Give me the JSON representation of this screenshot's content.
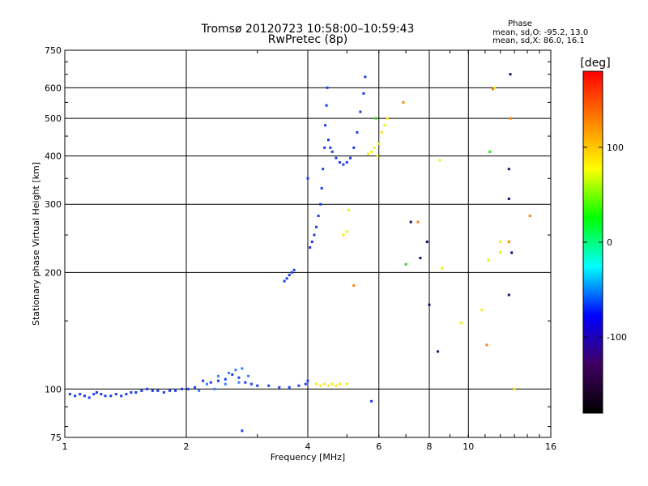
{
  "chart_data": {
    "type": "scatter",
    "title": "Tromsø 20120723 10:58:00–10:59:43",
    "subtitle": "RwPretec (8p)",
    "xlabel": "Frequency [MHz]",
    "ylabel": "Stationary phase Virtual Height [km]",
    "x_scale": "log",
    "y_scale": "log",
    "xlim": [
      1,
      16
    ],
    "ylim": [
      75,
      750
    ],
    "x_ticks": [
      1,
      2,
      4,
      6,
      8,
      10,
      16
    ],
    "y_ticks": [
      75,
      100,
      200,
      300,
      400,
      500,
      600,
      750
    ],
    "grid": true,
    "phase_header": "Phase",
    "phase_stats": [
      "mean, sd,O: -95.2, 13.0",
      "mean, sd,X:  86.0, 16.1"
    ],
    "colorbar": {
      "label": "[deg]",
      "range": [
        -180,
        180
      ],
      "ticks": [
        100,
        0,
        -100
      ],
      "colors": [
        "#ff0000",
        "#ff8000",
        "#ffff00",
        "#00ff00",
        "#00ffff",
        "#0000ff",
        "#400060",
        "#000000"
      ]
    },
    "series": [
      {
        "color": "#1a3cf0",
        "points": [
          [
            1.03,
            97
          ],
          [
            1.06,
            96
          ],
          [
            1.09,
            97
          ],
          [
            1.12,
            96
          ],
          [
            1.15,
            95
          ],
          [
            1.18,
            97
          ],
          [
            1.2,
            98
          ],
          [
            1.23,
            97
          ],
          [
            1.26,
            96
          ],
          [
            1.3,
            96
          ],
          [
            1.34,
            97
          ],
          [
            1.38,
            96
          ],
          [
            1.42,
            97
          ],
          [
            1.46,
            98
          ],
          [
            1.5,
            98
          ],
          [
            1.55,
            99
          ],
          [
            1.6,
            100
          ],
          [
            1.65,
            99
          ],
          [
            1.7,
            99
          ],
          [
            1.76,
            98
          ],
          [
            1.82,
            99
          ],
          [
            1.88,
            99
          ],
          [
            1.95,
            100
          ],
          [
            2.02,
            100
          ],
          [
            2.1,
            101
          ],
          [
            2.2,
            105
          ],
          [
            2.3,
            104
          ],
          [
            2.4,
            105
          ],
          [
            2.5,
            106
          ],
          [
            2.6,
            109
          ],
          [
            2.7,
            107
          ],
          [
            2.8,
            104
          ],
          [
            2.9,
            103
          ],
          [
            3.0,
            102
          ],
          [
            3.2,
            102
          ],
          [
            3.4,
            101
          ],
          [
            3.6,
            101
          ],
          [
            3.8,
            102
          ],
          [
            3.95,
            103
          ],
          [
            4.0,
            105
          ],
          [
            3.5,
            190
          ],
          [
            3.55,
            193
          ],
          [
            3.6,
            197
          ],
          [
            3.65,
            200
          ],
          [
            3.7,
            203
          ],
          [
            4.05,
            232
          ],
          [
            4.1,
            240
          ],
          [
            4.15,
            250
          ],
          [
            4.2,
            262
          ],
          [
            4.25,
            280
          ],
          [
            4.3,
            300
          ],
          [
            4.33,
            330
          ],
          [
            4.36,
            370
          ],
          [
            4.4,
            420
          ],
          [
            4.42,
            480
          ],
          [
            4.45,
            540
          ],
          [
            4.47,
            600
          ],
          [
            4.5,
            440
          ],
          [
            4.55,
            420
          ],
          [
            4.6,
            410
          ],
          [
            4.7,
            395
          ],
          [
            4.8,
            385
          ],
          [
            4.9,
            380
          ],
          [
            5.0,
            385
          ],
          [
            5.1,
            395
          ],
          [
            5.2,
            420
          ],
          [
            5.3,
            460
          ],
          [
            5.4,
            520
          ],
          [
            5.5,
            580
          ],
          [
            5.55,
            640
          ],
          [
            4.0,
            350
          ],
          [
            5.75,
            93
          ],
          [
            2.75,
            78
          ]
        ]
      },
      {
        "color": "#2f80ff",
        "points": [
          [
            2.25,
            103
          ],
          [
            2.4,
            108
          ],
          [
            2.55,
            110
          ],
          [
            2.65,
            112
          ],
          [
            2.75,
            113
          ],
          [
            2.85,
            108
          ],
          [
            2.7,
            104
          ],
          [
            2.5,
            103
          ],
          [
            2.35,
            100
          ],
          [
            2.15,
            99
          ]
        ]
      },
      {
        "color": "#f0f010",
        "points": [
          [
            4.2,
            103
          ],
          [
            4.3,
            102
          ],
          [
            4.4,
            103
          ],
          [
            4.5,
            102
          ],
          [
            4.6,
            103
          ],
          [
            4.7,
            102
          ],
          [
            4.8,
            103
          ],
          [
            5.0,
            103
          ],
          [
            4.9,
            250
          ],
          [
            5.0,
            255
          ],
          [
            5.05,
            290
          ],
          [
            5.65,
            405
          ],
          [
            5.75,
            410
          ],
          [
            5.85,
            420
          ],
          [
            5.95,
            400
          ],
          [
            6.0,
            430
          ],
          [
            6.1,
            460
          ],
          [
            6.2,
            480
          ],
          [
            6.3,
            500
          ],
          [
            8.5,
            390
          ],
          [
            8.6,
            205
          ],
          [
            9.6,
            148
          ],
          [
            10.8,
            160
          ],
          [
            11.2,
            215
          ],
          [
            11.6,
            600
          ],
          [
            12.0,
            225
          ],
          [
            12.0,
            240
          ],
          [
            13.0,
            100
          ]
        ]
      },
      {
        "color": "#ff8000",
        "points": [
          [
            5.2,
            185
          ],
          [
            6.9,
            550
          ],
          [
            7.5,
            270
          ],
          [
            11.5,
            595
          ],
          [
            12.6,
            240
          ],
          [
            12.7,
            500
          ],
          [
            14.2,
            280
          ],
          [
            11.1,
            130
          ]
        ]
      },
      {
        "color": "#20e020",
        "points": [
          [
            7.0,
            210
          ],
          [
            11.3,
            410
          ],
          [
            5.9,
            500
          ]
        ]
      },
      {
        "color": "#101070",
        "points": [
          [
            7.2,
            270
          ],
          [
            7.6,
            218
          ],
          [
            7.9,
            240
          ],
          [
            8.4,
            125
          ],
          [
            8.0,
            165
          ],
          [
            12.6,
            370
          ],
          [
            12.6,
            310
          ],
          [
            12.6,
            175
          ],
          [
            12.8,
            225
          ],
          [
            12.7,
            650
          ]
        ]
      }
    ]
  }
}
